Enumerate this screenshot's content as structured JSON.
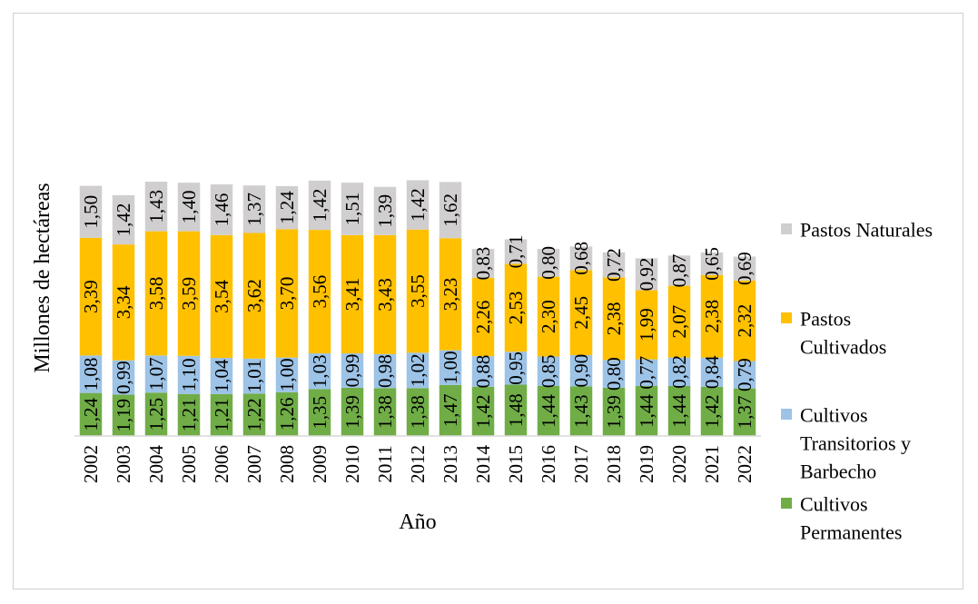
{
  "chart_data": {
    "type": "bar",
    "stacked": true,
    "title": "",
    "xlabel": "Año",
    "ylabel": "Millones de hectáreas",
    "ylim": [
      0,
      8.2
    ],
    "grid": false,
    "legend_position": "right",
    "categories": [
      "2002",
      "2003",
      "2004",
      "2005",
      "2006",
      "2007",
      "2008",
      "2009",
      "2010",
      "2011",
      "2012",
      "2013",
      "2014",
      "2015",
      "2016",
      "2017",
      "2018",
      "2019",
      "2020",
      "2021",
      "2022"
    ],
    "series": [
      {
        "name": "Cultivos Permanentes",
        "legend_lines": [
          "Cultivos",
          "Permanentes"
        ],
        "color": "#70ad47",
        "values": [
          1.24,
          1.19,
          1.25,
          1.21,
          1.21,
          1.22,
          1.26,
          1.35,
          1.39,
          1.38,
          1.38,
          1.47,
          1.42,
          1.48,
          1.44,
          1.43,
          1.39,
          1.44,
          1.44,
          1.42,
          1.37
        ],
        "labels": [
          "1,24",
          "1,19",
          "1,25",
          "1,21",
          "1,21",
          "1,22",
          "1,26",
          "1,35",
          "1,39",
          "1,38",
          "1,38",
          "1,47",
          "1,42",
          "1,48",
          "1,44",
          "1,43",
          "1,39",
          "1,44",
          "1,44",
          "1,42",
          "1,37"
        ]
      },
      {
        "name": "Cultivos Transitorios y Barbecho",
        "legend_lines": [
          "Cultivos",
          "Transitorios y",
          "Barbecho"
        ],
        "color": "#9dc3e6",
        "values": [
          1.08,
          0.99,
          1.07,
          1.1,
          1.04,
          1.01,
          1.0,
          1.03,
          0.99,
          0.98,
          1.02,
          1.0,
          0.88,
          0.95,
          0.85,
          0.9,
          0.8,
          0.77,
          0.82,
          0.84,
          0.79
        ],
        "labels": [
          "1,08",
          "0,99",
          "1,07",
          "1,10",
          "1,04",
          "1,01",
          "1,00",
          "1,03",
          "0,99",
          "0,98",
          "1,02",
          "1,00",
          "0,88",
          "0,95",
          "0,85",
          "0,90",
          "0,80",
          "0,77",
          "0,82",
          "0,84",
          "0,79"
        ]
      },
      {
        "name": "Pastos Cultivados",
        "legend_lines": [
          "Pastos",
          "Cultivados"
        ],
        "color": "#ffc000",
        "values": [
          3.39,
          3.34,
          3.58,
          3.59,
          3.54,
          3.62,
          3.7,
          3.56,
          3.41,
          3.43,
          3.55,
          3.23,
          2.26,
          2.53,
          2.3,
          2.45,
          2.38,
          1.99,
          2.07,
          2.38,
          2.32
        ],
        "labels": [
          "3,39",
          "3,34",
          "3,58",
          "3,59",
          "3,54",
          "3,62",
          "3,70",
          "3,56",
          "3,41",
          "3,43",
          "3,55",
          "3,23",
          "2,26",
          "2,53",
          "2,30",
          "2,45",
          "2,38",
          "1,99",
          "2,07",
          "2,38",
          "2,32"
        ]
      },
      {
        "name": "Pastos Naturales",
        "legend_lines": [
          "Pastos Naturales"
        ],
        "color": "#d0cece",
        "values": [
          1.5,
          1.42,
          1.43,
          1.4,
          1.46,
          1.37,
          1.24,
          1.42,
          1.51,
          1.39,
          1.42,
          1.62,
          0.83,
          0.71,
          0.8,
          0.68,
          0.72,
          0.92,
          0.87,
          0.65,
          0.69
        ],
        "labels": [
          "1,50",
          "1,42",
          "1,43",
          "1,40",
          "1,46",
          "1,37",
          "1,24",
          "1,42",
          "1,51",
          "1,39",
          "1,42",
          "1,62",
          "0,83",
          "0,71",
          "0,80",
          "0,68",
          "0,72",
          "0,92",
          "0,87",
          "0,65",
          "0,69"
        ]
      }
    ],
    "legend_order": [
      3,
      2,
      1,
      0
    ]
  }
}
